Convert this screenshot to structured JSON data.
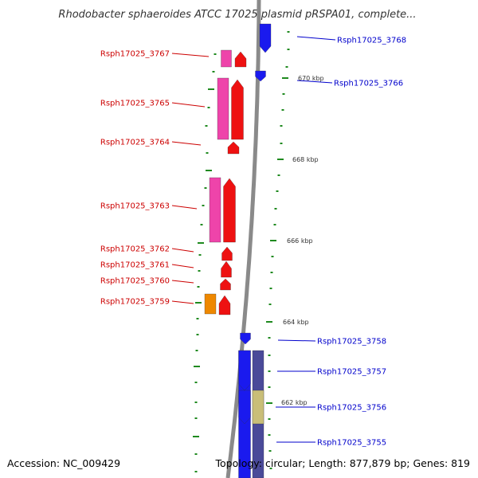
{
  "title": "Rhodobacter sphaeroides ATCC 17025 plasmid pRSPA01, complete...",
  "footer": {
    "accession": "Accession: NC_009429",
    "summary": "Topology: circular; Length: 877,879 bp; Genes: 819"
  },
  "colors": {
    "backbone": "#8a8a8a",
    "tick": "#1f8a1f",
    "left_label": "#cc0000",
    "right_label": "#0000cc",
    "pink": "#ee44aa",
    "red": "#ee1111",
    "orange": "#ee8800",
    "blue": "#1a1aee",
    "navy": "#4a4a99",
    "khaki": "#c9be78"
  },
  "kbp_labels": [
    "670 kbp",
    "668 kbp",
    "666 kbp",
    "664 kbp",
    "662 kbp"
  ],
  "left_genes": [
    "Rsph17025_3767",
    "Rsph17025_3765",
    "Rsph17025_3764",
    "Rsph17025_3763",
    "Rsph17025_3762",
    "Rsph17025_3761",
    "Rsph17025_3760",
    "Rsph17025_3759"
  ],
  "right_genes": [
    "Rsph17025_3768",
    "Rsph17025_3766",
    "Rsph17025_3758",
    "Rsph17025_3757",
    "Rsph17025_3756",
    "Rsph17025_3755"
  ]
}
